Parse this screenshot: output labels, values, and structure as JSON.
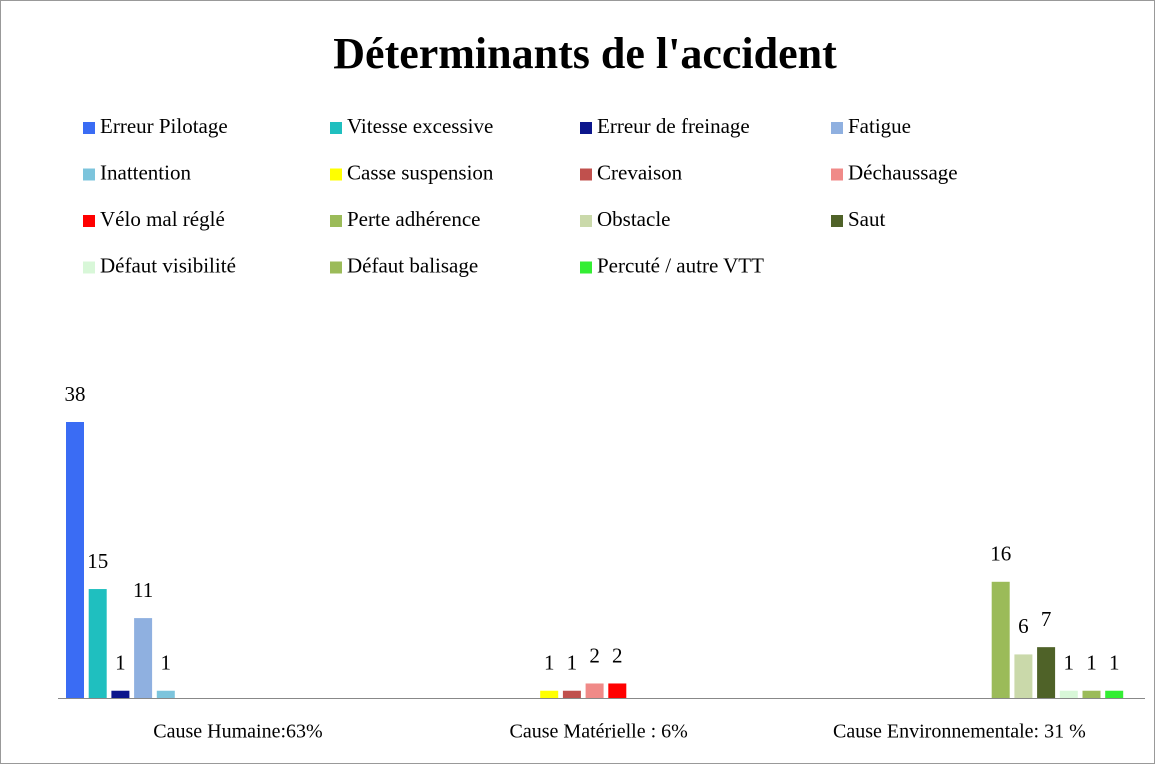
{
  "chart_data": {
    "type": "bar",
    "title": "Déterminants de l'accident",
    "categories": [
      "Cause Humaine:63%",
      "Cause Matérielle : 6%",
      "Cause Environnementale: 31 %"
    ],
    "series": [
      {
        "name": "Erreur Pilotage",
        "color": "#3a6cf4",
        "values": [
          38,
          null,
          null
        ]
      },
      {
        "name": "Vitesse excessive",
        "color": "#1fbfbf",
        "values": [
          15,
          null,
          null
        ]
      },
      {
        "name": "Erreur de freinage",
        "color": "#0c168c",
        "values": [
          1,
          null,
          null
        ]
      },
      {
        "name": "Fatigue",
        "color": "#8fb0e0",
        "values": [
          11,
          null,
          null
        ]
      },
      {
        "name": "Inattention",
        "color": "#7cc4dc",
        "values": [
          1,
          null,
          null
        ]
      },
      {
        "name": "Casse suspension",
        "color": "#ffff00",
        "values": [
          null,
          1,
          null
        ]
      },
      {
        "name": "Crevaison",
        "color": "#c0504d",
        "values": [
          null,
          1,
          null
        ]
      },
      {
        "name": "Déchaussage",
        "color": "#f08a88",
        "values": [
          null,
          2,
          null
        ]
      },
      {
        "name": "Vélo mal réglé",
        "color": "#ff0000",
        "values": [
          null,
          2,
          null
        ]
      },
      {
        "name": "Perte adhérence",
        "color": "#9bbb59",
        "values": [
          null,
          null,
          16
        ]
      },
      {
        "name": "Obstacle",
        "color": "#cad9aa",
        "values": [
          null,
          null,
          6
        ]
      },
      {
        "name": "Saut",
        "color": "#4f6228",
        "values": [
          null,
          null,
          7
        ]
      },
      {
        "name": "Défaut visibilité",
        "color": "#d8f7d8",
        "values": [
          null,
          null,
          1
        ]
      },
      {
        "name": "Défaut balisage",
        "color": "#9bbb59",
        "values": [
          null,
          null,
          1
        ]
      },
      {
        "name": "Percuté / autre VTT",
        "color": "#33ee33",
        "values": [
          null,
          null,
          1
        ]
      }
    ]
  }
}
